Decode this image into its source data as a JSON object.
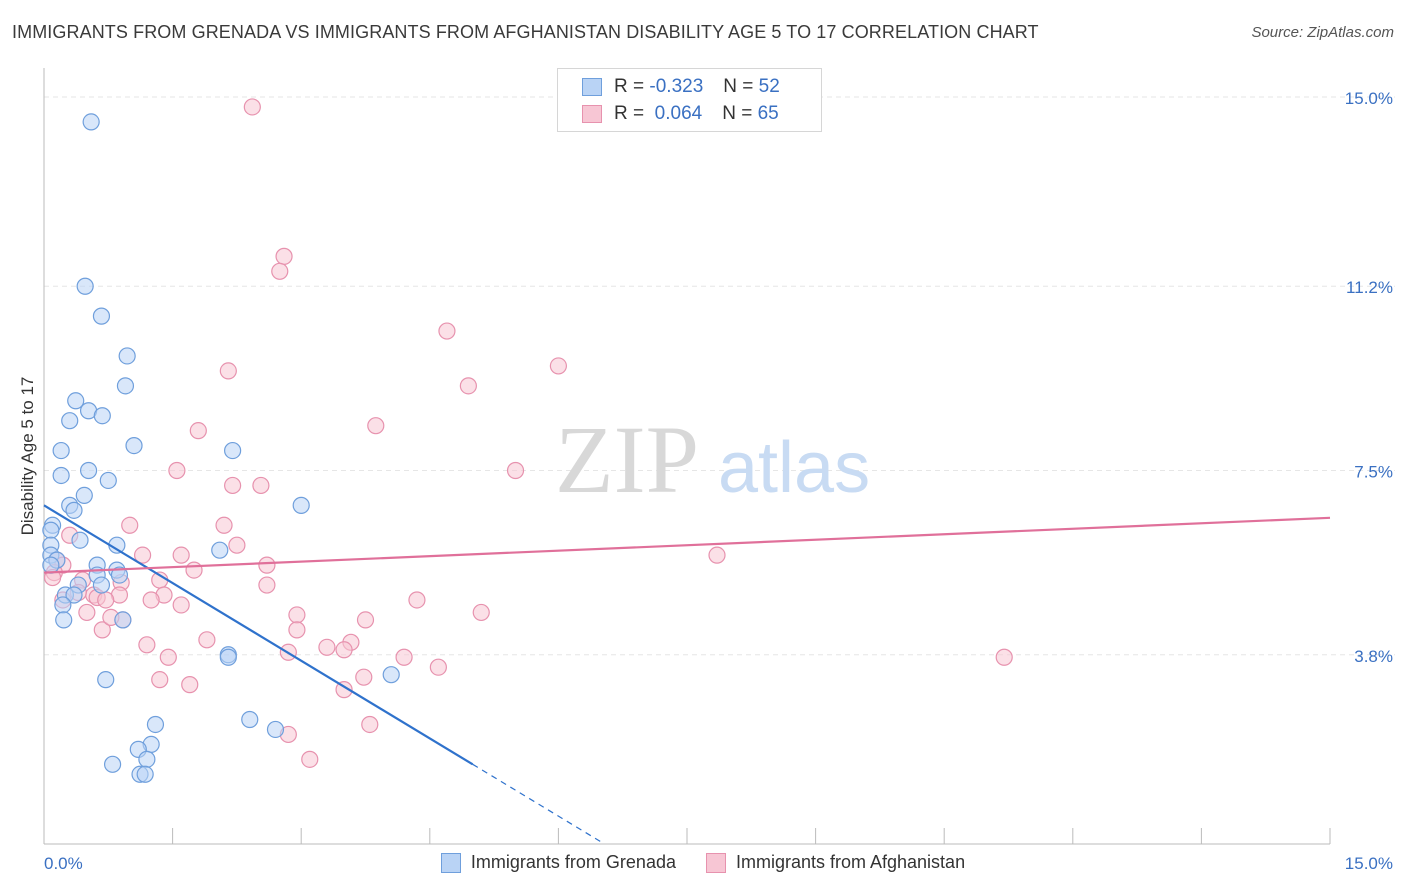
{
  "header": {
    "title": "IMMIGRANTS FROM GRENADA VS IMMIGRANTS FROM AFGHANISTAN DISABILITY AGE 5 TO 17 CORRELATION CHART",
    "source": "Source: ZipAtlas.com"
  },
  "watermark": {
    "zip": "ZIP",
    "atlas": "atlas"
  },
  "legend": {
    "r_label": "R =",
    "n_label": "N =",
    "series": [
      {
        "r": "-0.323",
        "n": "52"
      },
      {
        "r": "0.064",
        "n": "65"
      }
    ]
  },
  "colors": {
    "grenada_fill": "#b9d3f5",
    "grenada_stroke": "#6f9fdc",
    "grenada_line": "#2f72cc",
    "afghanistan_fill": "#f7c6d4",
    "afghanistan_stroke": "#e792ae",
    "afghanistan_line": "#e0709a",
    "axis_text": "#3a70c2",
    "grid": "#e6e6e6"
  },
  "chart_data": {
    "type": "scatter",
    "title": "IMMIGRANTS FROM GRENADA VS IMMIGRANTS FROM AFGHANISTAN DISABILITY AGE 5 TO 17 CORRELATION CHART",
    "xlabel": "",
    "ylabel": "Disability Age 5 to 17",
    "xlim": [
      0,
      15
    ],
    "ylim": [
      0,
      15.5
    ],
    "x_tick_labels": [
      "0.0%",
      "15.0%"
    ],
    "y_ticks": [
      3.8,
      7.5,
      11.2,
      15.0
    ],
    "y_tick_labels": [
      "3.8%",
      "7.5%",
      "11.2%",
      "15.0%"
    ],
    "legend_position": "top-center",
    "series": [
      {
        "name": "Immigrants from Grenada",
        "r": -0.323,
        "n": 52,
        "trend": {
          "x0": 0.0,
          "y0": 6.8,
          "x1": 5.0,
          "y1": 1.6,
          "dashed_to_x": 6.5
        },
        "points": [
          [
            0.55,
            14.5
          ],
          [
            0.48,
            11.2
          ],
          [
            0.67,
            10.6
          ],
          [
            0.97,
            9.8
          ],
          [
            0.95,
            9.2
          ],
          [
            0.37,
            8.9
          ],
          [
            0.52,
            8.7
          ],
          [
            0.68,
            8.6
          ],
          [
            0.3,
            8.5
          ],
          [
            0.2,
            7.9
          ],
          [
            1.05,
            8.0
          ],
          [
            2.2,
            7.9
          ],
          [
            0.2,
            7.4
          ],
          [
            0.52,
            7.5
          ],
          [
            0.75,
            7.3
          ],
          [
            0.47,
            7.0
          ],
          [
            0.3,
            6.8
          ],
          [
            0.35,
            6.7
          ],
          [
            3.0,
            6.8
          ],
          [
            0.1,
            6.4
          ],
          [
            0.08,
            6.3
          ],
          [
            0.08,
            6.0
          ],
          [
            0.42,
            6.1
          ],
          [
            0.85,
            6.0
          ],
          [
            2.05,
            5.9
          ],
          [
            0.08,
            5.8
          ],
          [
            0.15,
            5.7
          ],
          [
            0.08,
            5.6
          ],
          [
            0.62,
            5.6
          ],
          [
            0.85,
            5.5
          ],
          [
            0.62,
            5.4
          ],
          [
            0.88,
            5.4
          ],
          [
            0.4,
            5.2
          ],
          [
            0.67,
            5.2
          ],
          [
            0.25,
            5.0
          ],
          [
            0.35,
            5.0
          ],
          [
            0.22,
            4.8
          ],
          [
            0.92,
            4.5
          ],
          [
            0.23,
            4.5
          ],
          [
            2.15,
            3.8
          ],
          [
            2.15,
            3.75
          ],
          [
            4.05,
            3.4
          ],
          [
            0.72,
            3.3
          ],
          [
            1.3,
            2.4
          ],
          [
            2.4,
            2.5
          ],
          [
            2.7,
            2.3
          ],
          [
            1.25,
            2.0
          ],
          [
            1.1,
            1.9
          ],
          [
            1.2,
            1.7
          ],
          [
            0.8,
            1.6
          ],
          [
            1.12,
            1.4
          ],
          [
            1.18,
            1.4
          ]
        ]
      },
      {
        "name": "Immigrants from Afghanistan",
        "r": 0.064,
        "n": 65,
        "trend": {
          "x0": 0.0,
          "y0": 5.45,
          "x1": 15.0,
          "y1": 6.55
        },
        "points": [
          [
            2.43,
            14.8
          ],
          [
            2.8,
            11.8
          ],
          [
            2.75,
            11.5
          ],
          [
            4.7,
            10.3
          ],
          [
            6.0,
            9.6
          ],
          [
            2.15,
            9.5
          ],
          [
            4.95,
            9.2
          ],
          [
            3.87,
            8.4
          ],
          [
            1.8,
            8.3
          ],
          [
            1.55,
            7.5
          ],
          [
            5.5,
            7.5
          ],
          [
            2.2,
            7.2
          ],
          [
            2.53,
            7.2
          ],
          [
            2.1,
            6.4
          ],
          [
            1.0,
            6.4
          ],
          [
            0.3,
            6.2
          ],
          [
            2.25,
            6.0
          ],
          [
            1.15,
            5.8
          ],
          [
            1.6,
            5.8
          ],
          [
            7.85,
            5.8
          ],
          [
            0.15,
            5.7
          ],
          [
            0.22,
            5.6
          ],
          [
            2.6,
            5.6
          ],
          [
            1.75,
            5.5
          ],
          [
            0.12,
            5.45
          ],
          [
            0.1,
            5.35
          ],
          [
            0.45,
            5.3
          ],
          [
            1.35,
            5.3
          ],
          [
            0.9,
            5.25
          ],
          [
            2.6,
            5.2
          ],
          [
            1.4,
            5.0
          ],
          [
            0.88,
            5.0
          ],
          [
            0.58,
            5.0
          ],
          [
            0.62,
            4.95
          ],
          [
            1.25,
            4.9
          ],
          [
            4.35,
            4.9
          ],
          [
            0.22,
            4.9
          ],
          [
            0.72,
            4.9
          ],
          [
            1.6,
            4.8
          ],
          [
            0.5,
            4.65
          ],
          [
            5.1,
            4.65
          ],
          [
            2.95,
            4.6
          ],
          [
            0.92,
            4.5
          ],
          [
            3.75,
            4.5
          ],
          [
            0.68,
            4.3
          ],
          [
            2.95,
            4.3
          ],
          [
            1.9,
            4.1
          ],
          [
            3.58,
            4.05
          ],
          [
            1.2,
            4.0
          ],
          [
            3.3,
            3.95
          ],
          [
            3.5,
            3.9
          ],
          [
            2.85,
            3.85
          ],
          [
            4.2,
            3.75
          ],
          [
            1.45,
            3.75
          ],
          [
            11.2,
            3.75
          ],
          [
            4.6,
            3.55
          ],
          [
            3.73,
            3.35
          ],
          [
            1.35,
            3.3
          ],
          [
            3.5,
            3.1
          ],
          [
            1.7,
            3.2
          ],
          [
            3.8,
            2.4
          ],
          [
            2.85,
            2.2
          ],
          [
            3.1,
            1.7
          ],
          [
            0.78,
            4.55
          ],
          [
            0.4,
            5.05
          ]
        ]
      }
    ]
  }
}
